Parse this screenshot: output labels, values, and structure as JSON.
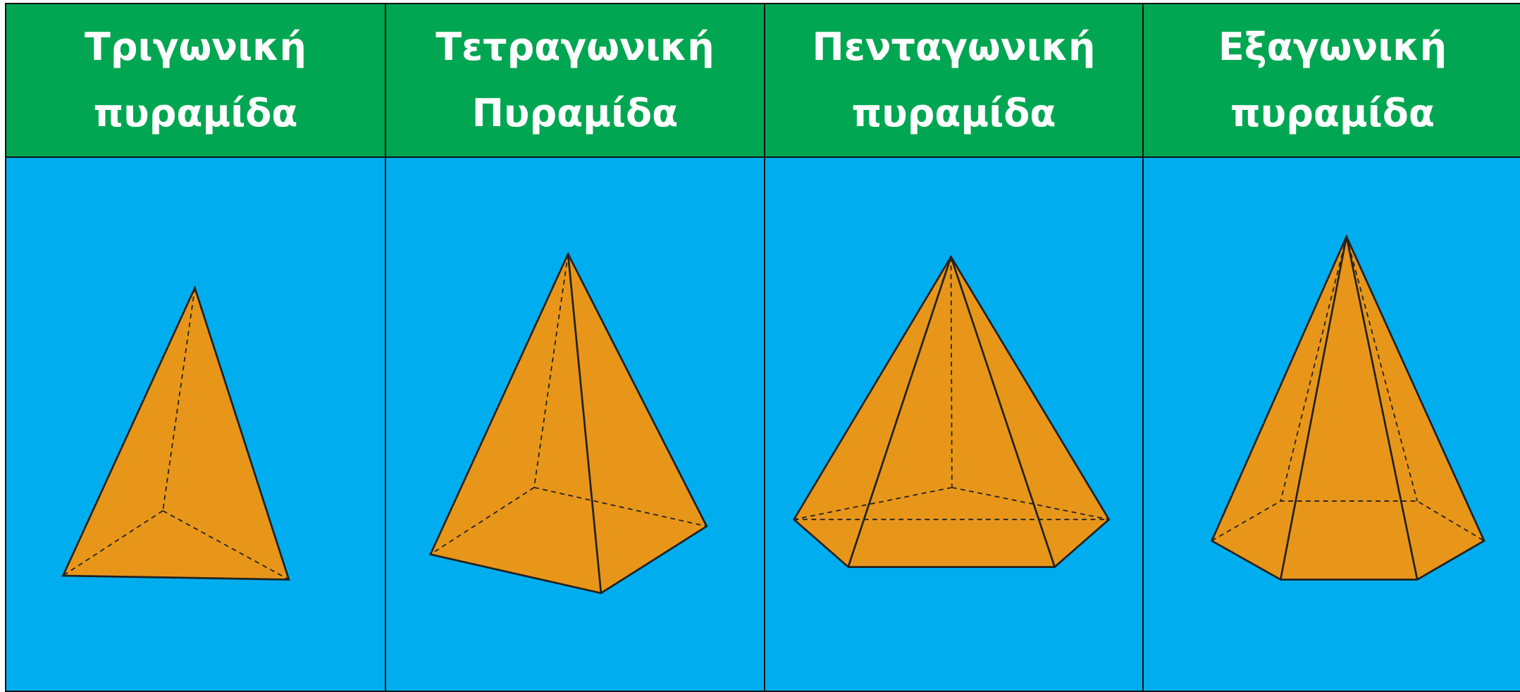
{
  "columns": [
    {
      "title": [
        "Τριγωνική",
        "πυραμίδα"
      ]
    },
    {
      "title": [
        "Τετραγωνική",
        "Πυραμίδα"
      ]
    },
    {
      "title": [
        "Πενταγωνική",
        "πυραμίδα"
      ]
    },
    {
      "title": [
        "Εξαγωνική",
        "πυραμίδα"
      ]
    }
  ]
}
